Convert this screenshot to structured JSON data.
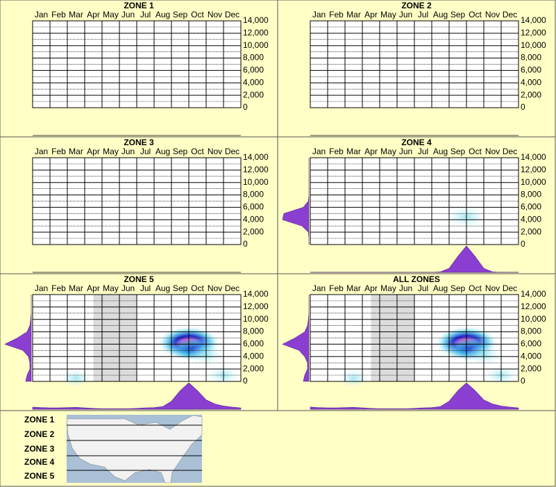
{
  "chart_data": [
    {
      "type": "heatmap",
      "title": "ZONE 1",
      "categories": [
        "Jan",
        "Feb",
        "Mar",
        "Apr",
        "May",
        "Jun",
        "Jul",
        "Aug",
        "Sep",
        "Oct",
        "Nov",
        "Dec"
      ],
      "xlim": [
        0,
        12
      ],
      "ylim": [
        0,
        14000
      ],
      "yticks": [
        0,
        {
          "value": 2000,
          "label": "2,000"
        },
        {
          "value": 4000,
          "label": "4,000"
        },
        {
          "value": 6000,
          "label": "6,000"
        },
        {
          "value": 8000,
          "label": "8,000"
        },
        {
          "value": 10000,
          "label": "10,000"
        },
        {
          "value": 12000,
          "label": "12,000"
        },
        {
          "value": 14000,
          "label": "14,000"
        }
      ]
    },
    {
      "type": "heatmap",
      "title": "ZONE 2",
      "categories": [
        "Jan",
        "Feb",
        "Mar",
        "Apr",
        "May",
        "Jun",
        "Jul",
        "Aug",
        "Sep",
        "Oct",
        "Nov",
        "Dec"
      ],
      "xlim": [
        0,
        12
      ],
      "ylim": [
        0,
        14000
      ],
      "yticks": [
        0,
        {
          "value": 2000,
          "label": "2,000"
        },
        {
          "value": 4000,
          "label": "4,000"
        },
        {
          "value": 6000,
          "label": "6,000"
        },
        {
          "value": 8000,
          "label": "8,000"
        },
        {
          "value": 10000,
          "label": "10,000"
        },
        {
          "value": 12000,
          "label": "12,000"
        },
        {
          "value": 14000,
          "label": "14,000"
        }
      ]
    },
    {
      "type": "heatmap",
      "title": "ZONE 3",
      "categories": [
        "Jan",
        "Feb",
        "Mar",
        "Apr",
        "May",
        "Jun",
        "Jul",
        "Aug",
        "Sep",
        "Oct",
        "Nov",
        "Dec"
      ],
      "xlim": [
        0,
        12
      ],
      "ylim": [
        0,
        14000
      ],
      "yticks": [
        0,
        {
          "value": 2000,
          "label": "2,000"
        },
        {
          "value": 4000,
          "label": "4,000"
        },
        {
          "value": 6000,
          "label": "6,000"
        },
        {
          "value": 8000,
          "label": "8,000"
        },
        {
          "value": 10000,
          "label": "10,000"
        },
        {
          "value": 12000,
          "label": "12,000"
        },
        {
          "value": 14000,
          "label": "14,000"
        }
      ]
    },
    {
      "type": "heatmap",
      "title": "ZONE 4",
      "categories": [
        "Jan",
        "Feb",
        "Mar",
        "Apr",
        "May",
        "Jun",
        "Jul",
        "Aug",
        "Sep",
        "Oct",
        "Nov",
        "Dec"
      ],
      "xlim": [
        0,
        12
      ],
      "ylim": [
        0,
        14000
      ],
      "yticks": [
        0,
        {
          "value": 2000,
          "label": "2,000"
        },
        {
          "value": 4000,
          "label": "4,000"
        },
        {
          "value": 6000,
          "label": "6,000"
        },
        {
          "value": 8000,
          "label": "8,000"
        },
        {
          "value": 10000,
          "label": "10,000"
        },
        {
          "value": 12000,
          "label": "12,000"
        },
        {
          "value": 14000,
          "label": "14,000"
        }
      ],
      "spots": {
        "x": [
          9.0
        ],
        "y": [
          4500
        ],
        "intensity": [
          0.35
        ]
      },
      "month_profile": {
        "x": [
          0,
          0.5,
          1,
          1.5,
          2,
          2.5,
          3,
          3.5,
          4,
          4.5,
          5,
          5.5,
          6,
          6.5,
          7,
          7.5,
          8,
          8.5,
          9,
          9.5,
          10,
          10.5,
          11,
          11.5,
          12
        ],
        "values": [
          0,
          0,
          0,
          0,
          0,
          0,
          0,
          0,
          0,
          0,
          0,
          0,
          0,
          0,
          0,
          0.02,
          0.15,
          0.6,
          1.0,
          0.6,
          0.15,
          0.02,
          0,
          0,
          0
        ]
      },
      "altitude_profile": {
        "y": [
          0,
          1000,
          2000,
          3000,
          4000,
          5000,
          6000,
          7000,
          8000,
          9000,
          10000,
          11000,
          12000,
          13000,
          14000
        ],
        "values": [
          0,
          0,
          0.02,
          0.25,
          0.95,
          0.9,
          0.2,
          0.02,
          0,
          0,
          0,
          0,
          0,
          0,
          0
        ]
      }
    },
    {
      "type": "heatmap",
      "title": "ZONE 5",
      "categories": [
        "Jan",
        "Feb",
        "Mar",
        "Apr",
        "May",
        "Jun",
        "Jul",
        "Aug",
        "Sep",
        "Oct",
        "Nov",
        "Dec"
      ],
      "xlim": [
        0,
        12
      ],
      "ylim": [
        0,
        14000
      ],
      "yticks": [
        0,
        {
          "value": 2000,
          "label": "2,000"
        },
        {
          "value": 4000,
          "label": "4,000"
        },
        {
          "value": 6000,
          "label": "6,000"
        },
        {
          "value": 8000,
          "label": "8,000"
        },
        {
          "value": 10000,
          "label": "10,000"
        },
        {
          "value": 12000,
          "label": "12,000"
        },
        {
          "value": 14000,
          "label": "14,000"
        }
      ],
      "shade": [
        3.5,
        6.0
      ],
      "spots": {
        "x": [
          9.0,
          9.2,
          10.0,
          2.5,
          11.0
        ],
        "y": [
          6200,
          5300,
          4300,
          500,
          1000
        ],
        "intensity": [
          1.0,
          0.5,
          0.2,
          0.1,
          0.15
        ]
      },
      "month_profile": {
        "x": [
          0,
          0.5,
          1,
          1.5,
          2,
          2.5,
          3,
          3.5,
          4,
          4.5,
          5,
          5.5,
          6,
          6.5,
          7,
          7.5,
          8,
          8.5,
          9,
          9.5,
          10,
          10.5,
          11,
          11.5,
          12
        ],
        "values": [
          0.08,
          0.06,
          0.05,
          0.05,
          0.06,
          0.07,
          0.05,
          0.03,
          0.02,
          0.02,
          0.02,
          0.02,
          0.03,
          0.05,
          0.06,
          0.1,
          0.3,
          0.7,
          1.0,
          0.7,
          0.35,
          0.2,
          0.12,
          0.08,
          0.05
        ]
      },
      "altitude_profile": {
        "y": [
          0,
          1000,
          2000,
          3000,
          4000,
          5000,
          6000,
          7000,
          8000,
          9000,
          10000,
          11000,
          12000,
          13000,
          14000
        ],
        "values": [
          0.2,
          0.15,
          0.05,
          0.05,
          0.1,
          0.3,
          0.95,
          0.5,
          0.15,
          0.05,
          0.02,
          0,
          0,
          0,
          0
        ]
      }
    },
    {
      "type": "heatmap",
      "title": "ALL ZONES",
      "categories": [
        "Jan",
        "Feb",
        "Mar",
        "Apr",
        "May",
        "Jun",
        "Jul",
        "Aug",
        "Sep",
        "Oct",
        "Nov",
        "Dec"
      ],
      "xlim": [
        0,
        12
      ],
      "ylim": [
        0,
        14000
      ],
      "yticks": [
        0,
        {
          "value": 2000,
          "label": "2,000"
        },
        {
          "value": 4000,
          "label": "4,000"
        },
        {
          "value": 6000,
          "label": "6,000"
        },
        {
          "value": 8000,
          "label": "8,000"
        },
        {
          "value": 10000,
          "label": "10,000"
        },
        {
          "value": 12000,
          "label": "12,000"
        },
        {
          "value": 14000,
          "label": "14,000"
        }
      ],
      "shade": [
        3.5,
        6.0
      ],
      "spots": {
        "x": [
          9.0,
          9.2,
          10.0,
          2.5,
          11.0
        ],
        "y": [
          6200,
          5300,
          4300,
          500,
          1000
        ],
        "intensity": [
          1.0,
          0.5,
          0.22,
          0.1,
          0.15
        ]
      },
      "month_profile": {
        "x": [
          0,
          0.5,
          1,
          1.5,
          2,
          2.5,
          3,
          3.5,
          4,
          4.5,
          5,
          5.5,
          6,
          6.5,
          7,
          7.5,
          8,
          8.5,
          9,
          9.5,
          10,
          10.5,
          11,
          11.5,
          12
        ],
        "values": [
          0.08,
          0.06,
          0.05,
          0.05,
          0.06,
          0.07,
          0.05,
          0.03,
          0.02,
          0.02,
          0.02,
          0.02,
          0.03,
          0.05,
          0.06,
          0.1,
          0.3,
          0.7,
          1.0,
          0.7,
          0.35,
          0.2,
          0.12,
          0.08,
          0.05
        ]
      },
      "altitude_profile": {
        "y": [
          0,
          1000,
          2000,
          3000,
          4000,
          5000,
          6000,
          7000,
          8000,
          9000,
          10000,
          11000,
          12000,
          13000,
          14000
        ],
        "values": [
          0.2,
          0.15,
          0.05,
          0.05,
          0.15,
          0.35,
          0.95,
          0.5,
          0.15,
          0.05,
          0.02,
          0,
          0,
          0,
          0
        ]
      }
    }
  ],
  "legend": [
    "ZONE 1",
    "ZONE 2",
    "ZONE 3",
    "ZONE 4",
    "ZONE 5"
  ]
}
